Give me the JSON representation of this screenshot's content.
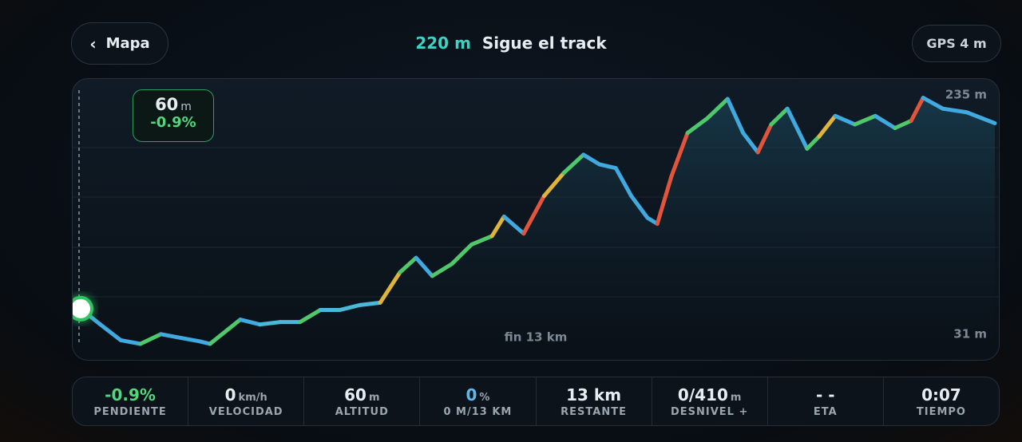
{
  "header": {
    "back": "Mapa",
    "distance": "220",
    "distance_unit": "m",
    "title": "Sigue el track",
    "gps": "GPS 4 m"
  },
  "chart": {
    "type": "line",
    "xlim": [
      0,
      13
    ],
    "ylim": [
      31,
      235
    ],
    "yticks": [
      {
        "value": 31,
        "label": "31 m"
      },
      {
        "value": 235,
        "label": "235 m"
      }
    ],
    "end_label": "fin 13 km",
    "cursor": {
      "altitude": "60",
      "unit": "m",
      "grade": "-0.9%"
    },
    "km": [
      0,
      0.28,
      0.57,
      0.85,
      1.14,
      1.42,
      1.7,
      1.84,
      1.99,
      2.27,
      2.55,
      2.84,
      3.12,
      3.41,
      3.69,
      3.97,
      4.26,
      4.54,
      4.77,
      5.0,
      5.28,
      5.56,
      5.85,
      6.02,
      6.3,
      6.59,
      6.87,
      7.15,
      7.38,
      7.61,
      7.83,
      8.06,
      8.2,
      8.4,
      8.63,
      8.91,
      9.2,
      9.42,
      9.63,
      9.82,
      10.05,
      10.33,
      10.5,
      10.73,
      11.01,
      11.3,
      11.58,
      11.81,
      11.98,
      12.26,
      12.6,
      13.0
    ],
    "altitude": [
      60,
      47,
      34,
      31,
      39,
      36,
      33,
      31,
      38,
      51,
      47,
      49,
      49,
      59,
      59,
      63,
      65,
      90,
      102,
      87,
      97,
      113,
      120,
      136,
      122,
      153,
      172,
      187,
      179,
      176,
      153,
      135,
      130,
      169,
      205,
      217,
      233,
      205,
      189,
      212,
      225,
      192,
      202,
      219,
      212,
      219,
      209,
      215,
      234,
      225,
      222,
      213
    ]
  },
  "stats": [
    {
      "value": "-0.9%",
      "label": "PENDIENTE",
      "color": "#52d77d"
    },
    {
      "value": "0",
      "unit": "km/h",
      "label": "VELOCIDAD",
      "color": "#e8edf2"
    },
    {
      "value": "60",
      "unit": "m",
      "label": "ALTITUD",
      "color": "#e8edf2"
    },
    {
      "value": "0",
      "unit": "%",
      "label": "0 M/13 KM",
      "color": "#5fb9e8"
    },
    {
      "value": "13 km",
      "label": "RESTANTE",
      "color": "#e8edf2"
    },
    {
      "value": "0/410",
      "unit": "m",
      "label": "DESNIVEL +",
      "color": "#e8edf2"
    },
    {
      "value": "- -",
      "label": "ETA",
      "color": "#e8edf2"
    },
    {
      "value": "0:07",
      "label": "TIEMPO",
      "color": "#e8edf2"
    }
  ]
}
